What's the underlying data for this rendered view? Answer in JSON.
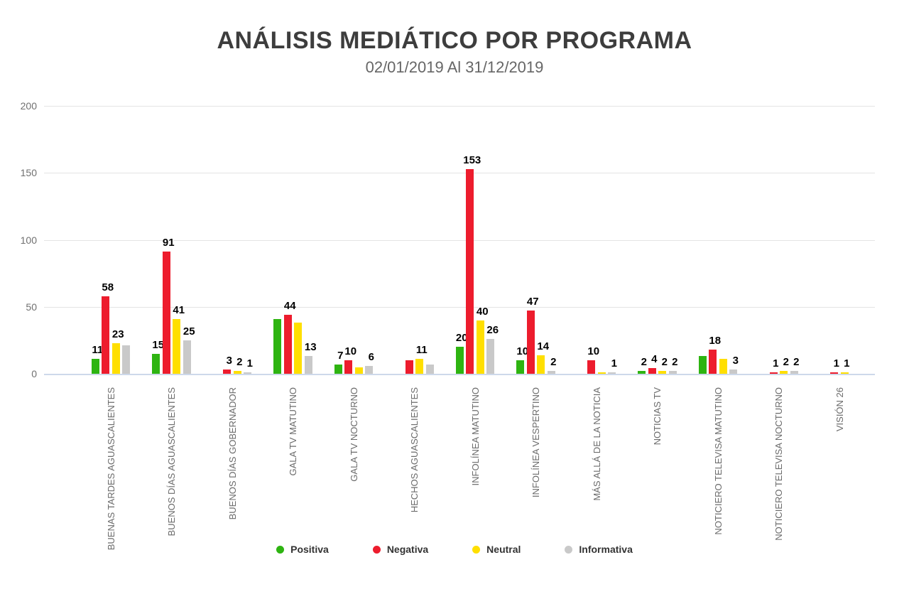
{
  "title": "ANÁLISIS MEDIÁTICO POR PROGRAMA",
  "subtitle": "02/01/2019 Al 31/12/2019",
  "chart_data": {
    "type": "bar",
    "title": "ANÁLISIS MEDIÁTICO POR PROGRAMA",
    "subtitle": "02/01/2019 Al 31/12/2019",
    "categories": [
      "BUENAS TARDES AGUASCALIENTES",
      "BUENOS DÍAS AGUASCALIENTES",
      "BUENOS DÍAS GOBERNADOR",
      "GALA TV MATUTINO",
      "GALA TV NOCTURNO",
      "HECHOS AGUASCALIENTES",
      "INFOLÍNEA MATUTINO",
      "INFOLÍNEA VESPERTINO",
      "MÁS ALLÁ DE LA NOTICIA",
      "NOTICIAS TV",
      "NOTICIERO TELEVISA MATUTINO",
      "NOTICIERO TELEVISA NOCTURNO",
      "VISIÓN 26"
    ],
    "series": [
      {
        "name": "Positiva",
        "color": "#2eb411",
        "values": [
          11,
          15,
          0,
          41,
          7,
          0,
          20,
          10,
          0,
          2,
          13,
          0,
          0
        ],
        "labels": [
          "11",
          "15",
          "",
          "",
          "7",
          "",
          "20",
          "10",
          "",
          "2",
          "",
          "",
          ""
        ]
      },
      {
        "name": "Negativa",
        "color": "#ed1c2d",
        "values": [
          58,
          91,
          3,
          44,
          10,
          10,
          153,
          47,
          10,
          4,
          18,
          1,
          1
        ],
        "labels": [
          "58",
          "91",
          "3",
          "44",
          "10",
          "",
          "153",
          "47",
          "10",
          "4",
          "18",
          "1",
          "1"
        ]
      },
      {
        "name": "Neutral",
        "color": "#ffdf00",
        "values": [
          23,
          41,
          2,
          38,
          5,
          11,
          40,
          14,
          1,
          2,
          11,
          2,
          1
        ],
        "labels": [
          "23",
          "41",
          "2",
          "",
          "",
          "11",
          "40",
          "14",
          "",
          "2",
          "",
          "2",
          "1"
        ]
      },
      {
        "name": "Informativa",
        "color": "#c9c9c9",
        "values": [
          21,
          25,
          1,
          13,
          6,
          7,
          26,
          2,
          1,
          2,
          3,
          2,
          0
        ],
        "labels": [
          "",
          "25",
          "1",
          "13",
          "6",
          "",
          "26",
          "2",
          "1",
          "2",
          "3",
          "2",
          ""
        ]
      }
    ],
    "yticks": [
      0,
      50,
      100,
      150,
      200
    ],
    "ylim": [
      0,
      200
    ],
    "grid": true,
    "legend_position": "bottom"
  }
}
